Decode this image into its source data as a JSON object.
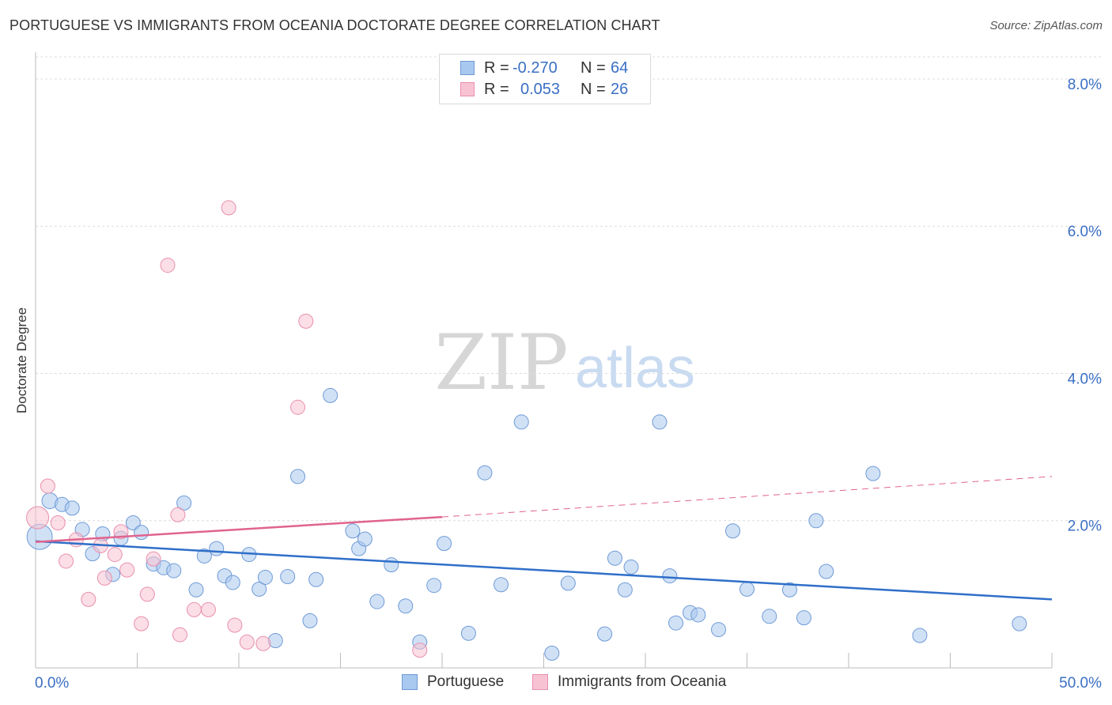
{
  "title": "PORTUGUESE VS IMMIGRANTS FROM OCEANIA DOCTORATE DEGREE CORRELATION CHART",
  "source": "Source: ZipAtlas.com",
  "watermark": {
    "zip": "ZIP",
    "atlas": "atlas"
  },
  "legend": {
    "rows": [
      {
        "r_label": "R =",
        "r_value": "-0.270",
        "n_label": "N =",
        "n_value": "64",
        "color": "#a9c8ef",
        "border": "#6f9ad6"
      },
      {
        "r_label": "R =",
        "r_value": "0.053",
        "n_label": "N =",
        "n_value": "26",
        "color": "#f7c3d2",
        "border": "#e98fae"
      }
    ]
  },
  "bottom_legend": [
    "Portuguese",
    "Immigrants from Oceania"
  ],
  "chart_data": {
    "type": "scatter",
    "title": "PORTUGUESE VS IMMIGRANTS FROM OCEANIA DOCTORATE DEGREE CORRELATION CHART",
    "xlabel": "",
    "ylabel": "Doctorate Degree",
    "xlim": [
      0,
      50
    ],
    "ylim": [
      0,
      8.3
    ],
    "x_tick_labels": [
      "0.0%",
      "50.0%"
    ],
    "y_ticks": [
      2,
      4,
      6,
      8
    ],
    "y_tick_labels": [
      "2.0%",
      "4.0%",
      "6.0%",
      "8.0%"
    ],
    "x_minor_ticks": [
      0,
      5,
      10,
      15,
      20,
      25,
      30,
      35,
      40,
      45,
      50
    ],
    "grid": "horizontal dashed",
    "series": [
      {
        "name": "Portuguese",
        "color": "#a9c8ef",
        "stroke": "#6f9ad6",
        "trend": {
          "x": [
            0,
            50
          ],
          "y": [
            1.72,
            0.93
          ],
          "color": "#2f6fc9"
        },
        "points": [
          {
            "x": 0.2,
            "y": 1.78,
            "s": 16
          },
          {
            "x": 0.7,
            "y": 2.27,
            "s": 10
          },
          {
            "x": 1.3,
            "y": 2.22,
            "s": 9
          },
          {
            "x": 1.8,
            "y": 2.17,
            "s": 9
          },
          {
            "x": 2.3,
            "y": 1.88,
            "s": 9
          },
          {
            "x": 2.8,
            "y": 1.55,
            "s": 9
          },
          {
            "x": 3.3,
            "y": 1.82,
            "s": 9
          },
          {
            "x": 3.8,
            "y": 1.27,
            "s": 9
          },
          {
            "x": 4.2,
            "y": 1.76,
            "s": 9
          },
          {
            "x": 4.8,
            "y": 1.97,
            "s": 9
          },
          {
            "x": 5.2,
            "y": 1.84,
            "s": 9
          },
          {
            "x": 5.8,
            "y": 1.41,
            "s": 9
          },
          {
            "x": 6.3,
            "y": 1.36,
            "s": 9
          },
          {
            "x": 6.8,
            "y": 1.32,
            "s": 9
          },
          {
            "x": 7.3,
            "y": 2.24,
            "s": 9
          },
          {
            "x": 7.9,
            "y": 1.06,
            "s": 9
          },
          {
            "x": 8.3,
            "y": 1.52,
            "s": 9
          },
          {
            "x": 8.9,
            "y": 1.62,
            "s": 9
          },
          {
            "x": 9.3,
            "y": 1.25,
            "s": 9
          },
          {
            "x": 9.7,
            "y": 1.16,
            "s": 9
          },
          {
            "x": 10.5,
            "y": 1.54,
            "s": 9
          },
          {
            "x": 11.0,
            "y": 1.07,
            "s": 9
          },
          {
            "x": 11.3,
            "y": 1.23,
            "s": 9
          },
          {
            "x": 11.8,
            "y": 0.37,
            "s": 9
          },
          {
            "x": 12.4,
            "y": 1.24,
            "s": 9
          },
          {
            "x": 12.9,
            "y": 2.6,
            "s": 9
          },
          {
            "x": 13.5,
            "y": 0.64,
            "s": 9
          },
          {
            "x": 13.8,
            "y": 1.2,
            "s": 9
          },
          {
            "x": 14.5,
            "y": 3.7,
            "s": 9
          },
          {
            "x": 15.6,
            "y": 1.86,
            "s": 9
          },
          {
            "x": 15.9,
            "y": 1.62,
            "s": 9
          },
          {
            "x": 16.2,
            "y": 1.75,
            "s": 9
          },
          {
            "x": 16.8,
            "y": 0.9,
            "s": 9
          },
          {
            "x": 17.5,
            "y": 1.4,
            "s": 9
          },
          {
            "x": 18.2,
            "y": 0.84,
            "s": 9
          },
          {
            "x": 18.9,
            "y": 0.35,
            "s": 9
          },
          {
            "x": 19.6,
            "y": 1.12,
            "s": 9
          },
          {
            "x": 20.1,
            "y": 1.69,
            "s": 9
          },
          {
            "x": 21.3,
            "y": 0.47,
            "s": 9
          },
          {
            "x": 22.1,
            "y": 2.65,
            "s": 9
          },
          {
            "x": 22.9,
            "y": 1.13,
            "s": 9
          },
          {
            "x": 23.9,
            "y": 3.34,
            "s": 9
          },
          {
            "x": 25.4,
            "y": 0.2,
            "s": 9
          },
          {
            "x": 26.2,
            "y": 1.15,
            "s": 9
          },
          {
            "x": 28.0,
            "y": 0.46,
            "s": 9
          },
          {
            "x": 28.5,
            "y": 1.49,
            "s": 9
          },
          {
            "x": 29.0,
            "y": 1.06,
            "s": 9
          },
          {
            "x": 29.3,
            "y": 1.37,
            "s": 9
          },
          {
            "x": 30.7,
            "y": 3.34,
            "s": 9
          },
          {
            "x": 31.2,
            "y": 1.25,
            "s": 9
          },
          {
            "x": 31.5,
            "y": 0.61,
            "s": 9
          },
          {
            "x": 32.2,
            "y": 0.75,
            "s": 9
          },
          {
            "x": 32.6,
            "y": 0.72,
            "s": 9
          },
          {
            "x": 33.6,
            "y": 0.52,
            "s": 9
          },
          {
            "x": 34.3,
            "y": 1.86,
            "s": 9
          },
          {
            "x": 35.0,
            "y": 1.07,
            "s": 9
          },
          {
            "x": 36.1,
            "y": 0.7,
            "s": 9
          },
          {
            "x": 37.1,
            "y": 1.06,
            "s": 9
          },
          {
            "x": 37.8,
            "y": 0.68,
            "s": 9
          },
          {
            "x": 38.4,
            "y": 2.0,
            "s": 9
          },
          {
            "x": 38.9,
            "y": 1.31,
            "s": 9
          },
          {
            "x": 41.2,
            "y": 2.64,
            "s": 9
          },
          {
            "x": 43.5,
            "y": 0.44,
            "s": 9
          },
          {
            "x": 48.4,
            "y": 0.6,
            "s": 9
          }
        ]
      },
      {
        "name": "Immigrants from Oceania",
        "color": "#f7c3d2",
        "stroke": "#e98fae",
        "trend": {
          "x": [
            0,
            20
          ],
          "y": [
            1.71,
            2.05
          ],
          "color": "#e0648e",
          "dashed_to": {
            "x": 50,
            "y": 2.6
          }
        },
        "points": [
          {
            "x": 0.1,
            "y": 2.04,
            "s": 14
          },
          {
            "x": 0.6,
            "y": 2.47,
            "s": 9
          },
          {
            "x": 1.1,
            "y": 1.97,
            "s": 9
          },
          {
            "x": 1.5,
            "y": 1.45,
            "s": 9
          },
          {
            "x": 2.0,
            "y": 1.74,
            "s": 9
          },
          {
            "x": 2.6,
            "y": 0.93,
            "s": 9
          },
          {
            "x": 3.2,
            "y": 1.66,
            "s": 9
          },
          {
            "x": 3.4,
            "y": 1.22,
            "s": 9
          },
          {
            "x": 3.9,
            "y": 1.54,
            "s": 9
          },
          {
            "x": 4.2,
            "y": 1.85,
            "s": 9
          },
          {
            "x": 4.5,
            "y": 1.33,
            "s": 9
          },
          {
            "x": 5.2,
            "y": 0.6,
            "s": 9
          },
          {
            "x": 5.5,
            "y": 1.0,
            "s": 9
          },
          {
            "x": 5.8,
            "y": 1.48,
            "s": 9
          },
          {
            "x": 6.5,
            "y": 5.47,
            "s": 9
          },
          {
            "x": 7.1,
            "y": 0.45,
            "s": 9
          },
          {
            "x": 7.0,
            "y": 2.08,
            "s": 9
          },
          {
            "x": 7.8,
            "y": 0.79,
            "s": 9
          },
          {
            "x": 8.5,
            "y": 0.79,
            "s": 9
          },
          {
            "x": 9.5,
            "y": 6.25,
            "s": 9
          },
          {
            "x": 9.8,
            "y": 0.58,
            "s": 9
          },
          {
            "x": 10.4,
            "y": 0.35,
            "s": 9
          },
          {
            "x": 11.2,
            "y": 0.33,
            "s": 9
          },
          {
            "x": 12.9,
            "y": 3.54,
            "s": 9
          },
          {
            "x": 13.3,
            "y": 4.71,
            "s": 9
          },
          {
            "x": 18.9,
            "y": 0.24,
            "s": 9
          }
        ]
      }
    ]
  }
}
